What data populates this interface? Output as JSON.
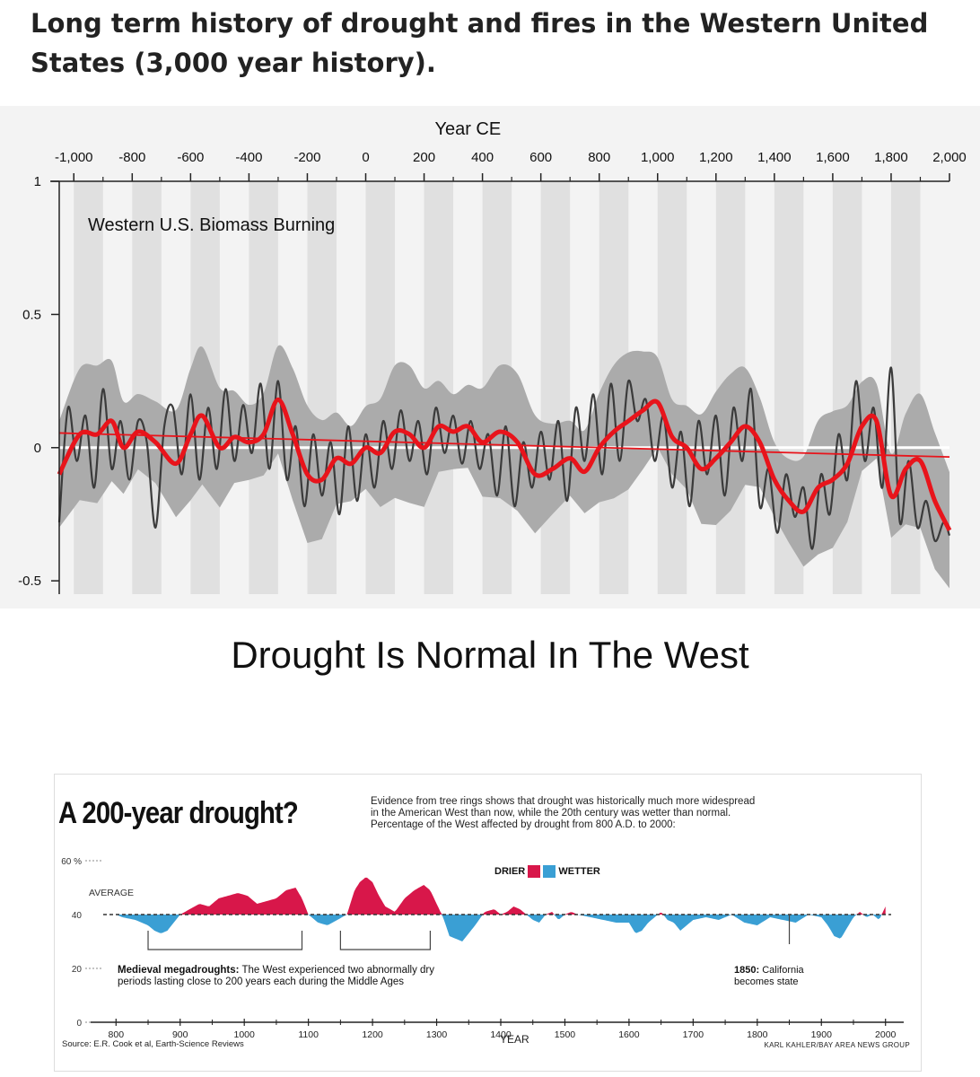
{
  "post": {
    "title": "Long term history of drought and fires in the Western United States (3,000 year history)."
  },
  "headline": "Drought Is Normal In The West",
  "colors": {
    "band": "#e0e0e0",
    "envelope": "#ababab",
    "raw_line": "#3b3b3b",
    "smooth_line": "#e8141b",
    "zero_line": "#ffffff",
    "drier": "#d8174a",
    "wetter": "#3a9fd4"
  },
  "chart_data": [
    {
      "type": "line",
      "title": "Western U.S. Biomass Burning",
      "xlabel": "Year CE",
      "ylabel": "",
      "xlim": [
        -1050,
        2000
      ],
      "ylim": [
        -0.55,
        1
      ],
      "x_ticks": [
        -1000,
        -800,
        -600,
        -400,
        -200,
        0,
        200,
        400,
        600,
        800,
        1000,
        1200,
        1400,
        1600,
        1800,
        2000
      ],
      "x_tick_labels": [
        "-1,000",
        "-800",
        "-600",
        "-400",
        "-200",
        "0",
        "200",
        "400",
        "600",
        "800",
        "1,000",
        "1,200",
        "1,400",
        "1,600",
        "1,800",
        "2,000"
      ],
      "y_ticks": [
        1,
        0.5,
        0,
        -0.5
      ],
      "y_tick_labels": [
        "1",
        "0.5",
        "0",
        "-0.5"
      ],
      "grid": "alternating 100-year vertical bands",
      "series": [
        {
          "name": "Smoothed biomass burning",
          "x": [
            -1050,
            -980,
            -920,
            -870,
            -830,
            -780,
            -720,
            -650,
            -600,
            -560,
            -500,
            -450,
            -400,
            -350,
            -300,
            -250,
            -200,
            -150,
            -100,
            -50,
            0,
            50,
            100,
            150,
            200,
            250,
            300,
            350,
            400,
            460,
            520,
            580,
            640,
            700,
            750,
            800,
            850,
            900,
            950,
            1000,
            1050,
            1100,
            1150,
            1200,
            1250,
            1300,
            1350,
            1400,
            1450,
            1500,
            1550,
            1600,
            1650,
            1700,
            1750,
            1800,
            1850,
            1900,
            1950,
            2000
          ],
          "y": [
            -0.1,
            0.05,
            0.05,
            0.1,
            0.0,
            0.06,
            0.02,
            -0.06,
            0.05,
            0.12,
            0.0,
            0.04,
            0.02,
            0.05,
            0.18,
            0.05,
            -0.1,
            -0.12,
            -0.04,
            -0.06,
            0.0,
            -0.02,
            0.06,
            0.05,
            0.0,
            0.08,
            0.06,
            0.08,
            0.02,
            0.06,
            0.02,
            -0.1,
            -0.08,
            -0.04,
            -0.09,
            0.0,
            0.06,
            0.1,
            0.14,
            0.17,
            0.04,
            0.0,
            -0.08,
            -0.04,
            0.02,
            0.08,
            0.02,
            -0.12,
            -0.2,
            -0.24,
            -0.15,
            -0.12,
            -0.06,
            0.08,
            0.1,
            -0.18,
            -0.08,
            -0.05,
            -0.2,
            -0.31
          ]
        },
        {
          "name": "Linear trend",
          "x": [
            -1050,
            2000
          ],
          "y": [
            0.055,
            -0.035
          ]
        },
        {
          "name": "Raw biomass burning",
          "x": [
            -1050,
            -1020,
            -990,
            -960,
            -930,
            -900,
            -870,
            -840,
            -810,
            -780,
            -750,
            -720,
            -690,
            -660,
            -630,
            -600,
            -570,
            -540,
            -510,
            -480,
            -450,
            -420,
            -390,
            -360,
            -330,
            -300,
            -270,
            -240,
            -210,
            -180,
            -150,
            -120,
            -90,
            -60,
            -30,
            0,
            30,
            60,
            90,
            120,
            150,
            180,
            210,
            240,
            270,
            300,
            330,
            360,
            390,
            420,
            450,
            480,
            510,
            540,
            570,
            600,
            630,
            660,
            690,
            720,
            750,
            780,
            810,
            840,
            870,
            900,
            930,
            960,
            990,
            1020,
            1050,
            1080,
            1110,
            1140,
            1170,
            1200,
            1230,
            1260,
            1290,
            1320,
            1350,
            1380,
            1410,
            1440,
            1470,
            1500,
            1530,
            1560,
            1590,
            1620,
            1650,
            1680,
            1710,
            1740,
            1770,
            1800,
            1830,
            1860,
            1890,
            1920,
            1950,
            1980,
            2000
          ],
          "y": [
            -0.28,
            0.15,
            -0.05,
            0.12,
            -0.15,
            0.22,
            -0.08,
            0.1,
            -0.12,
            0.1,
            0.02,
            -0.3,
            0.08,
            0.15,
            -0.1,
            0.2,
            -0.12,
            0.15,
            -0.08,
            0.22,
            -0.05,
            0.16,
            -0.02,
            0.24,
            -0.08,
            0.25,
            -0.12,
            0.08,
            -0.22,
            0.05,
            -0.18,
            0.02,
            -0.25,
            0.08,
            -0.2,
            0.05,
            -0.15,
            0.1,
            -0.08,
            0.14,
            -0.05,
            0.1,
            -0.1,
            0.15,
            -0.02,
            0.12,
            -0.06,
            0.1,
            -0.08,
            0.05,
            -0.18,
            0.08,
            -0.22,
            0.02,
            -0.15,
            0.06,
            -0.12,
            0.1,
            -0.2,
            0.15,
            -0.05,
            0.2,
            -0.1,
            0.24,
            -0.05,
            0.25,
            0.1,
            0.18,
            -0.05,
            0.12,
            -0.15,
            0.06,
            -0.22,
            0.1,
            -0.1,
            0.12,
            -0.18,
            0.15,
            -0.05,
            0.22,
            -0.22,
            -0.08,
            -0.32,
            -0.1,
            -0.26,
            -0.15,
            -0.38,
            -0.1,
            -0.25,
            0.05,
            -0.12,
            0.25,
            -0.05,
            0.15,
            -0.15,
            0.3,
            -0.28,
            -0.05,
            -0.3,
            -0.2,
            -0.35,
            -0.28,
            -0.33
          ]
        }
      ]
    },
    {
      "type": "area",
      "title": "A 200-year drought?",
      "description": [
        "Evidence from tree rings shows that drought was historically much more widespread",
        "in the American West than now, while the 20th century was wetter than normal.",
        "Percentage of the West affected by drought from 800 A.D. to 2000:"
      ],
      "legend": {
        "drier": "DRIER",
        "wetter": "WETTER"
      },
      "average_label": "AVERAGE",
      "average": 40,
      "xlabel": "YEAR",
      "ylabel": "",
      "xlim": [
        780,
        2020
      ],
      "ylim": [
        0,
        60
      ],
      "x_ticks": [
        800,
        900,
        1000,
        1100,
        1200,
        1300,
        1400,
        1500,
        1600,
        1700,
        1800,
        1900,
        2000
      ],
      "x_tick_labels": [
        "800",
        "900",
        "1000",
        "1100",
        "1200",
        "1300",
        "1400",
        "1500",
        "1600",
        "1700",
        "1800",
        "1900",
        "2000"
      ],
      "y_ticks": [
        60,
        40,
        20,
        0
      ],
      "y_tick_labels": [
        "60 %",
        "40",
        "20",
        "0"
      ],
      "x": [
        800,
        810,
        830,
        850,
        860,
        870,
        880,
        890,
        900,
        915,
        930,
        945,
        960,
        975,
        990,
        1005,
        1020,
        1035,
        1050,
        1065,
        1080,
        1090,
        1100,
        1115,
        1130,
        1145,
        1160,
        1172,
        1180,
        1190,
        1200,
        1210,
        1220,
        1235,
        1250,
        1265,
        1280,
        1290,
        1300,
        1310,
        1320,
        1330,
        1340,
        1350,
        1360,
        1375,
        1390,
        1400,
        1410,
        1420,
        1430,
        1440,
        1450,
        1460,
        1470,
        1480,
        1490,
        1500,
        1510,
        1520,
        1540,
        1560,
        1580,
        1600,
        1610,
        1620,
        1630,
        1640,
        1650,
        1660,
        1670,
        1680,
        1690,
        1700,
        1720,
        1740,
        1760,
        1780,
        1800,
        1820,
        1840,
        1860,
        1880,
        1900,
        1910,
        1920,
        1930,
        1940,
        1950,
        1960,
        1970,
        1980,
        1990,
        2000
      ],
      "values": [
        40,
        39,
        38,
        36,
        34,
        33,
        34,
        37,
        40,
        42,
        44,
        43,
        46,
        47,
        48,
        47,
        44,
        45,
        46,
        49,
        50,
        46,
        40,
        37,
        36,
        38,
        40,
        49,
        52,
        54,
        52,
        47,
        43,
        41,
        46,
        49,
        51,
        49,
        44,
        39,
        32,
        31,
        30,
        33,
        36,
        41,
        42,
        40,
        41,
        43,
        42,
        40,
        38,
        37,
        40,
        41,
        38,
        40,
        41,
        40,
        39,
        38,
        37,
        37,
        33,
        34,
        37,
        39,
        41,
        38,
        37,
        34,
        36,
        38,
        39,
        38,
        40,
        37,
        36,
        39,
        38,
        37,
        40,
        39,
        36,
        32,
        31,
        35,
        39,
        41,
        39,
        40,
        38,
        43
      ],
      "annotations": [
        {
          "bold": "Medieval megadroughts:",
          "text": " The West experienced two abnormally dry",
          "line2": "periods lasting close to 200 years each during the Middle Ages",
          "x": [
            850,
            1090,
            1150,
            1290
          ]
        },
        {
          "bold": "1850:",
          "text": " California",
          "line2": "becomes state",
          "x": [
            1850
          ]
        }
      ],
      "source": "Source: E.R. Cook et al, Earth-Science Reviews",
      "credit": "KARL KAHLER/BAY AREA NEWS GROUP"
    }
  ]
}
